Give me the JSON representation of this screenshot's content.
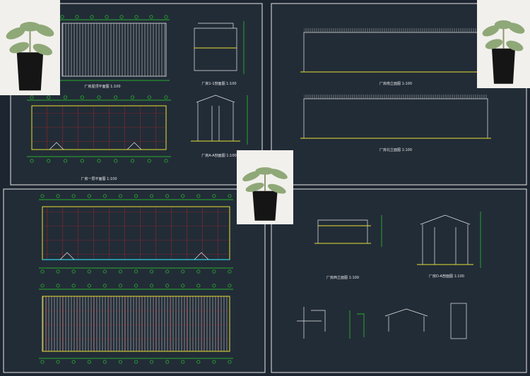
{
  "drawings": [
    {
      "label": "厂房屋顶平面图 1:100"
    },
    {
      "label": "厂房1-1剖面图 1:100"
    },
    {
      "label": "厂房一层平面图 1:100"
    },
    {
      "label": "厂房A-A剖面图 1:100"
    },
    {
      "label": "厂房南立面图 1:100"
    },
    {
      "label": "厂房北立面图 1:100"
    },
    {
      "label": "厂房西立面图 1:100"
    },
    {
      "label": "厂房D-A剖面图 1:100"
    }
  ]
}
